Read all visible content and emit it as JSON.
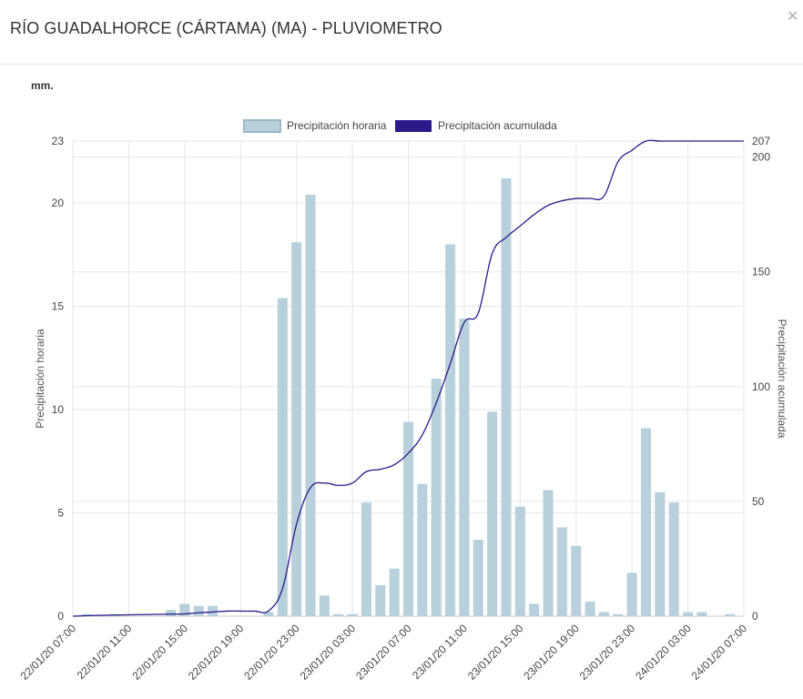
{
  "header": {
    "title": "RÍO GUADALHORCE (CÁRTAMA) (MA) - PLUVIOMETRO",
    "close_icon": "close-icon"
  },
  "units_label": "mm.",
  "colors": {
    "bars": "#b8d0dc",
    "bar_border": "#9ab8c8",
    "line": "#2a1a8a",
    "grid": "#e6e6e6"
  },
  "chart_data": {
    "type": "bar",
    "x": [
      "22/01/20 07:00",
      "22/01/20 08:00",
      "22/01/20 09:00",
      "22/01/20 10:00",
      "22/01/20 11:00",
      "22/01/20 12:00",
      "22/01/20 13:00",
      "22/01/20 14:00",
      "22/01/20 15:00",
      "22/01/20 16:00",
      "22/01/20 17:00",
      "22/01/20 18:00",
      "22/01/20 19:00",
      "22/01/20 20:00",
      "22/01/20 21:00",
      "22/01/20 22:00",
      "22/01/20 23:00",
      "23/01/20 00:00",
      "23/01/20 01:00",
      "23/01/20 02:00",
      "23/01/20 03:00",
      "23/01/20 04:00",
      "23/01/20 05:00",
      "23/01/20 06:00",
      "23/01/20 07:00",
      "23/01/20 08:00",
      "23/01/20 09:00",
      "23/01/20 10:00",
      "23/01/20 11:00",
      "23/01/20 12:00",
      "23/01/20 13:00",
      "23/01/20 14:00",
      "23/01/20 15:00",
      "23/01/20 16:00",
      "23/01/20 17:00",
      "23/01/20 18:00",
      "23/01/20 19:00",
      "23/01/20 20:00",
      "23/01/20 21:00",
      "23/01/20 22:00",
      "23/01/20 23:00",
      "24/01/20 00:00",
      "24/01/20 01:00",
      "24/01/20 02:00",
      "24/01/20 03:00",
      "24/01/20 04:00",
      "24/01/20 05:00",
      "24/01/20 06:00",
      "24/01/20 07:00"
    ],
    "x_tick_labels": [
      "22/01/20 07:00",
      "22/01/20 11:00",
      "22/01/20 15:00",
      "22/01/20 19:00",
      "22/01/20 23:00",
      "23/01/20 03:00",
      "23/01/20 07:00",
      "23/01/20 11:00",
      "23/01/20 15:00",
      "23/01/20 19:00",
      "23/01/20 23:00",
      "24/01/20 03:00",
      "24/01/20 07:00"
    ],
    "series": [
      {
        "name": "Precipitación horaria",
        "type": "bar",
        "axis": "left",
        "values": [
          0,
          0.1,
          0,
          0.1,
          0,
          0,
          0,
          0.3,
          0.6,
          0.5,
          0.5,
          0,
          0,
          0,
          0.2,
          15.4,
          18.1,
          20.4,
          1.0,
          0.1,
          0.1,
          5.5,
          1.5,
          2.3,
          9.4,
          6.4,
          11.5,
          18.0,
          14.4,
          3.7,
          9.9,
          21.2,
          5.3,
          0.6,
          6.1,
          4.3,
          3.4,
          0.7,
          0.2,
          0.1,
          2.1,
          9.1,
          6.0,
          5.5,
          0.2,
          0.2,
          0,
          0.1,
          0
        ]
      },
      {
        "name": "Precipitación acumulada",
        "type": "line",
        "axis": "right",
        "values": [
          0,
          0.2,
          0.4,
          0.5,
          0.6,
          0.7,
          0.8,
          0.9,
          1,
          1.5,
          1.8,
          2.2,
          2.2,
          2.2,
          2.3,
          12,
          40,
          56,
          58,
          57,
          58,
          63,
          64,
          66,
          71,
          79,
          93,
          110,
          128,
          132,
          158,
          165,
          170,
          175,
          179,
          181,
          182,
          182,
          183,
          198,
          203,
          207,
          207,
          207,
          207,
          207,
          207,
          207,
          207
        ]
      }
    ],
    "y_left": {
      "label": "Precipitación horaria",
      "range": [
        0,
        23
      ],
      "ticks": [
        0,
        5,
        10,
        15,
        20,
        23
      ]
    },
    "y_right": {
      "label": "Precipitación acumulada",
      "range": [
        0,
        207
      ],
      "ticks": [
        0,
        50,
        100,
        150,
        200,
        207
      ]
    },
    "legend": {
      "position": "top-center"
    },
    "grid": true
  }
}
